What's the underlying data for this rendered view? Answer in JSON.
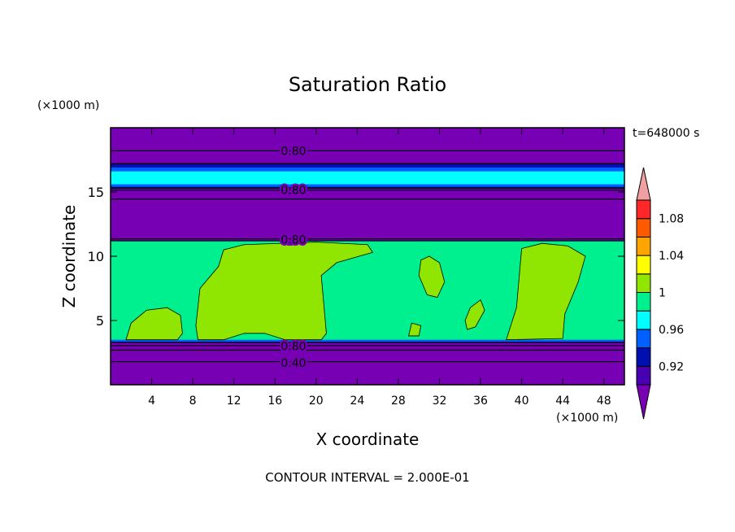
{
  "chart_data": {
    "type": "contour",
    "title": "Saturation Ratio",
    "x_label": "X coordinate",
    "y_label": "Z coordinate",
    "x_unit": "(×1000 m)",
    "y_unit": "(×1000 m)",
    "time_label": "t=648000 s",
    "footer": "CONTOUR INTERVAL = 2.000E-01",
    "xlim": [
      0,
      50
    ],
    "ylim": [
      0,
      20
    ],
    "xticks": [
      4,
      8,
      12,
      16,
      20,
      24,
      28,
      32,
      36,
      40,
      44,
      48
    ],
    "yticks": [
      5,
      10,
      15
    ],
    "contour_labels": [
      "0.80",
      "0.80",
      "0.80",
      "0.80",
      "0.40"
    ],
    "colorbar": {
      "levels": [
        0.9,
        0.92,
        0.94,
        0.96,
        0.98,
        1,
        1.02,
        1.04,
        1.06,
        1.08,
        1.1
      ],
      "ticks": [
        0.92,
        0.96,
        1,
        1.04,
        1.08
      ],
      "colors": [
        "#7800b4",
        "#4800b0",
        "#0010b0",
        "#0060ff",
        "#00ffff",
        "#00f090",
        "#90e600",
        "#ffff00",
        "#ffa500",
        "#ff5a00",
        "#ff2828",
        "#f0a0a0"
      ]
    }
  }
}
